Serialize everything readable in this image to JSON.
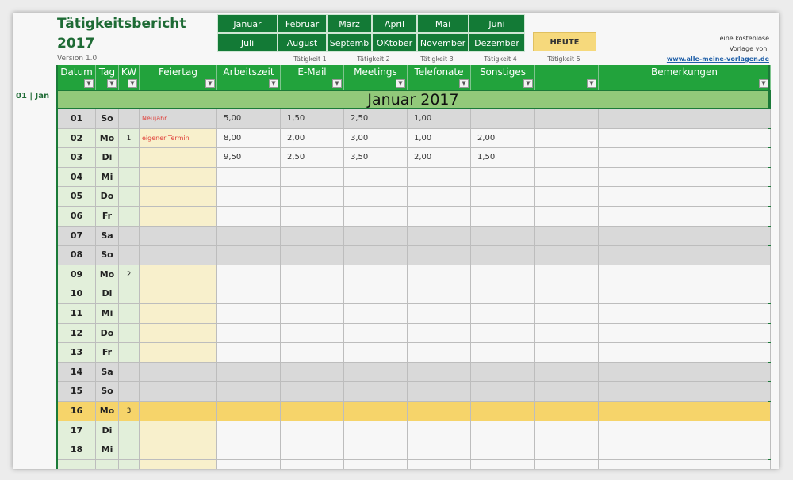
{
  "title_line1": "Tätigkeitsbericht",
  "title_line2": "2017",
  "version": "Version 1.0",
  "months": [
    "Januar",
    "Februar",
    "März",
    "April",
    "Mai",
    "Juni",
    "Juli",
    "August",
    "Septemb",
    "OKtober",
    "November",
    "Dezember"
  ],
  "today_button": "HEUTE",
  "activity_labels": [
    "Tätigkeit 1",
    "Tätigkeit 2",
    "Tätigkeit 3",
    "Tätigkeit 4",
    "Tätigkeit 5"
  ],
  "promo": {
    "line1": "eine kostenlose",
    "line2": "Vorlage von:",
    "link": "www.alle-meine-vorlagen.de"
  },
  "date_label": "01 | Jan",
  "columns": [
    "Datum",
    "Tag",
    "KW",
    "Feiertag",
    "Arbeitszeit",
    "E-Mail",
    "Meetings",
    "Telefonate",
    "Sonstiges",
    "",
    "Bemerkungen"
  ],
  "month_title": "Januar 2017",
  "colors": {
    "header": "#22a33c",
    "month_button": "#137a36",
    "weekend": "#d9d9d9",
    "today": "#f6d46a",
    "weekday_day": "#e2efda",
    "feiertag": "#f8f0cc",
    "holiday_text": "#e0403a"
  },
  "rows": [
    {
      "d": "01",
      "t": "So",
      "kw": "",
      "f": "Neujahr",
      "v": [
        "5,00",
        "1,50",
        "2,50",
        "1,00",
        "",
        ""
      ],
      "type": "weekend"
    },
    {
      "d": "02",
      "t": "Mo",
      "kw": "1",
      "f": "eigener Termin",
      "v": [
        "8,00",
        "2,00",
        "3,00",
        "1,00",
        "2,00",
        ""
      ],
      "type": "weekday"
    },
    {
      "d": "03",
      "t": "Di",
      "kw": "",
      "f": "",
      "v": [
        "9,50",
        "2,50",
        "3,50",
        "2,00",
        "1,50",
        ""
      ],
      "type": "weekday"
    },
    {
      "d": "04",
      "t": "Mi",
      "kw": "",
      "f": "",
      "v": [
        "",
        "",
        "",
        "",
        "",
        ""
      ],
      "type": "weekday"
    },
    {
      "d": "05",
      "t": "Do",
      "kw": "",
      "f": "",
      "v": [
        "",
        "",
        "",
        "",
        "",
        ""
      ],
      "type": "weekday"
    },
    {
      "d": "06",
      "t": "Fr",
      "kw": "",
      "f": "",
      "v": [
        "",
        "",
        "",
        "",
        "",
        ""
      ],
      "type": "weekday"
    },
    {
      "d": "07",
      "t": "Sa",
      "kw": "",
      "f": "",
      "v": [
        "",
        "",
        "",
        "",
        "",
        ""
      ],
      "type": "weekend"
    },
    {
      "d": "08",
      "t": "So",
      "kw": "",
      "f": "",
      "v": [
        "",
        "",
        "",
        "",
        "",
        ""
      ],
      "type": "weekend"
    },
    {
      "d": "09",
      "t": "Mo",
      "kw": "2",
      "f": "",
      "v": [
        "",
        "",
        "",
        "",
        "",
        ""
      ],
      "type": "weekday"
    },
    {
      "d": "10",
      "t": "Di",
      "kw": "",
      "f": "",
      "v": [
        "",
        "",
        "",
        "",
        "",
        ""
      ],
      "type": "weekday"
    },
    {
      "d": "11",
      "t": "Mi",
      "kw": "",
      "f": "",
      "v": [
        "",
        "",
        "",
        "",
        "",
        ""
      ],
      "type": "weekday"
    },
    {
      "d": "12",
      "t": "Do",
      "kw": "",
      "f": "",
      "v": [
        "",
        "",
        "",
        "",
        "",
        ""
      ],
      "type": "weekday"
    },
    {
      "d": "13",
      "t": "Fr",
      "kw": "",
      "f": "",
      "v": [
        "",
        "",
        "",
        "",
        "",
        ""
      ],
      "type": "weekday"
    },
    {
      "d": "14",
      "t": "Sa",
      "kw": "",
      "f": "",
      "v": [
        "",
        "",
        "",
        "",
        "",
        ""
      ],
      "type": "weekend"
    },
    {
      "d": "15",
      "t": "So",
      "kw": "",
      "f": "",
      "v": [
        "",
        "",
        "",
        "",
        "",
        ""
      ],
      "type": "weekend"
    },
    {
      "d": "16",
      "t": "Mo",
      "kw": "3",
      "f": "",
      "v": [
        "",
        "",
        "",
        "",
        "",
        ""
      ],
      "type": "today"
    },
    {
      "d": "17",
      "t": "Di",
      "kw": "",
      "f": "",
      "v": [
        "",
        "",
        "",
        "",
        "",
        ""
      ],
      "type": "weekday"
    },
    {
      "d": "18",
      "t": "Mi",
      "kw": "",
      "f": "",
      "v": [
        "",
        "",
        "",
        "",
        "",
        ""
      ],
      "type": "weekday"
    },
    {
      "d": "",
      "t": "",
      "kw": "",
      "f": "",
      "v": [
        "",
        "",
        "",
        "",
        "",
        ""
      ],
      "type": "weekday"
    }
  ]
}
